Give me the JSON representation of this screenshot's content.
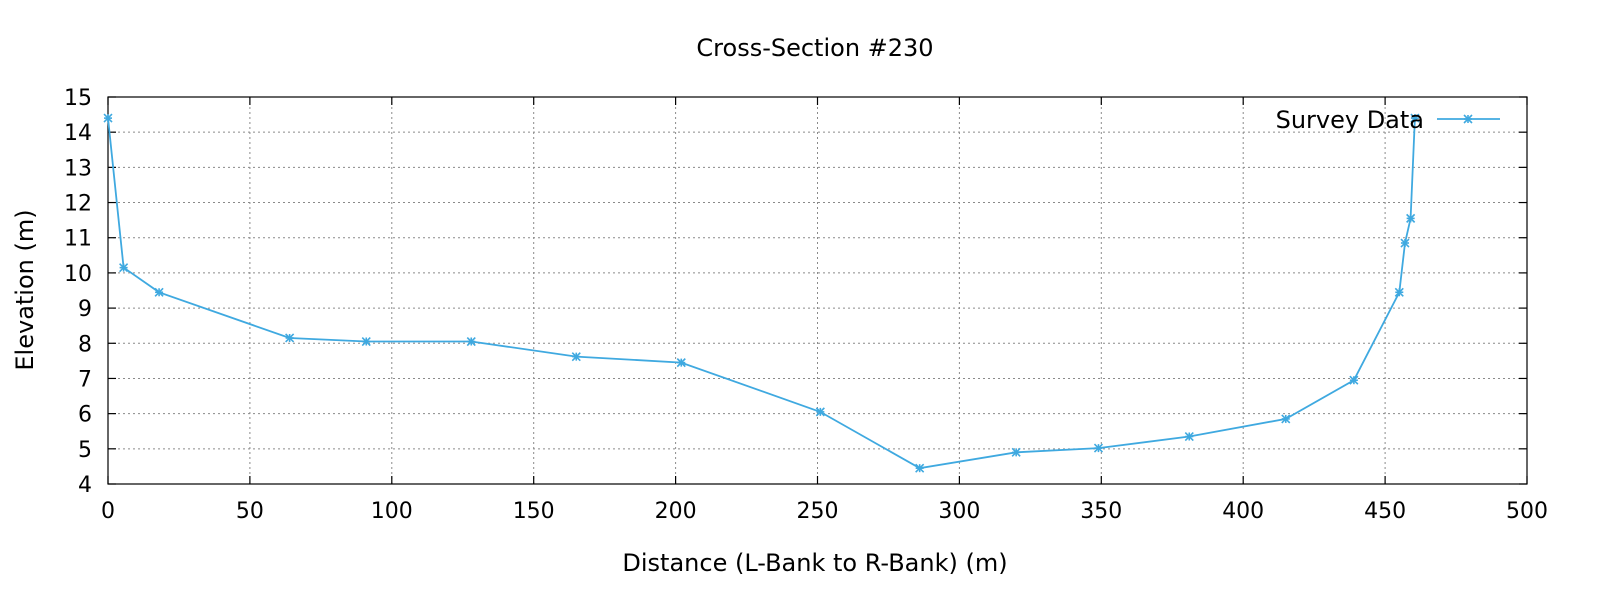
{
  "chart_data": {
    "type": "line",
    "title": "Cross-Section #230",
    "xlabel": "Distance (L-Bank to R-Bank) (m)",
    "ylabel": "Elevation (m)",
    "xlim": [
      0,
      500
    ],
    "ylim": [
      4,
      15
    ],
    "xticks": [
      0,
      50,
      100,
      150,
      200,
      250,
      300,
      350,
      400,
      450,
      500
    ],
    "yticks": [
      4,
      5,
      6,
      7,
      8,
      9,
      10,
      11,
      12,
      13,
      14,
      15
    ],
    "grid": true,
    "legend_position": "top-right",
    "series": [
      {
        "name": "Survey Data",
        "color": "#3fa9e0",
        "marker": "asterisk",
        "points": [
          [
            0,
            14.4
          ],
          [
            5.5,
            10.15
          ],
          [
            18,
            9.45
          ],
          [
            64,
            8.15
          ],
          [
            91,
            8.05
          ],
          [
            128,
            8.05
          ],
          [
            165,
            7.62
          ],
          [
            202,
            7.45
          ],
          [
            251,
            6.05
          ],
          [
            286,
            4.45
          ],
          [
            320,
            4.9
          ],
          [
            349,
            5.02
          ],
          [
            381,
            5.35
          ],
          [
            415,
            5.85
          ],
          [
            439,
            6.95
          ],
          [
            455,
            9.45
          ],
          [
            457,
            10.85
          ],
          [
            459,
            11.55
          ],
          [
            460.5,
            14.4
          ]
        ]
      }
    ]
  }
}
